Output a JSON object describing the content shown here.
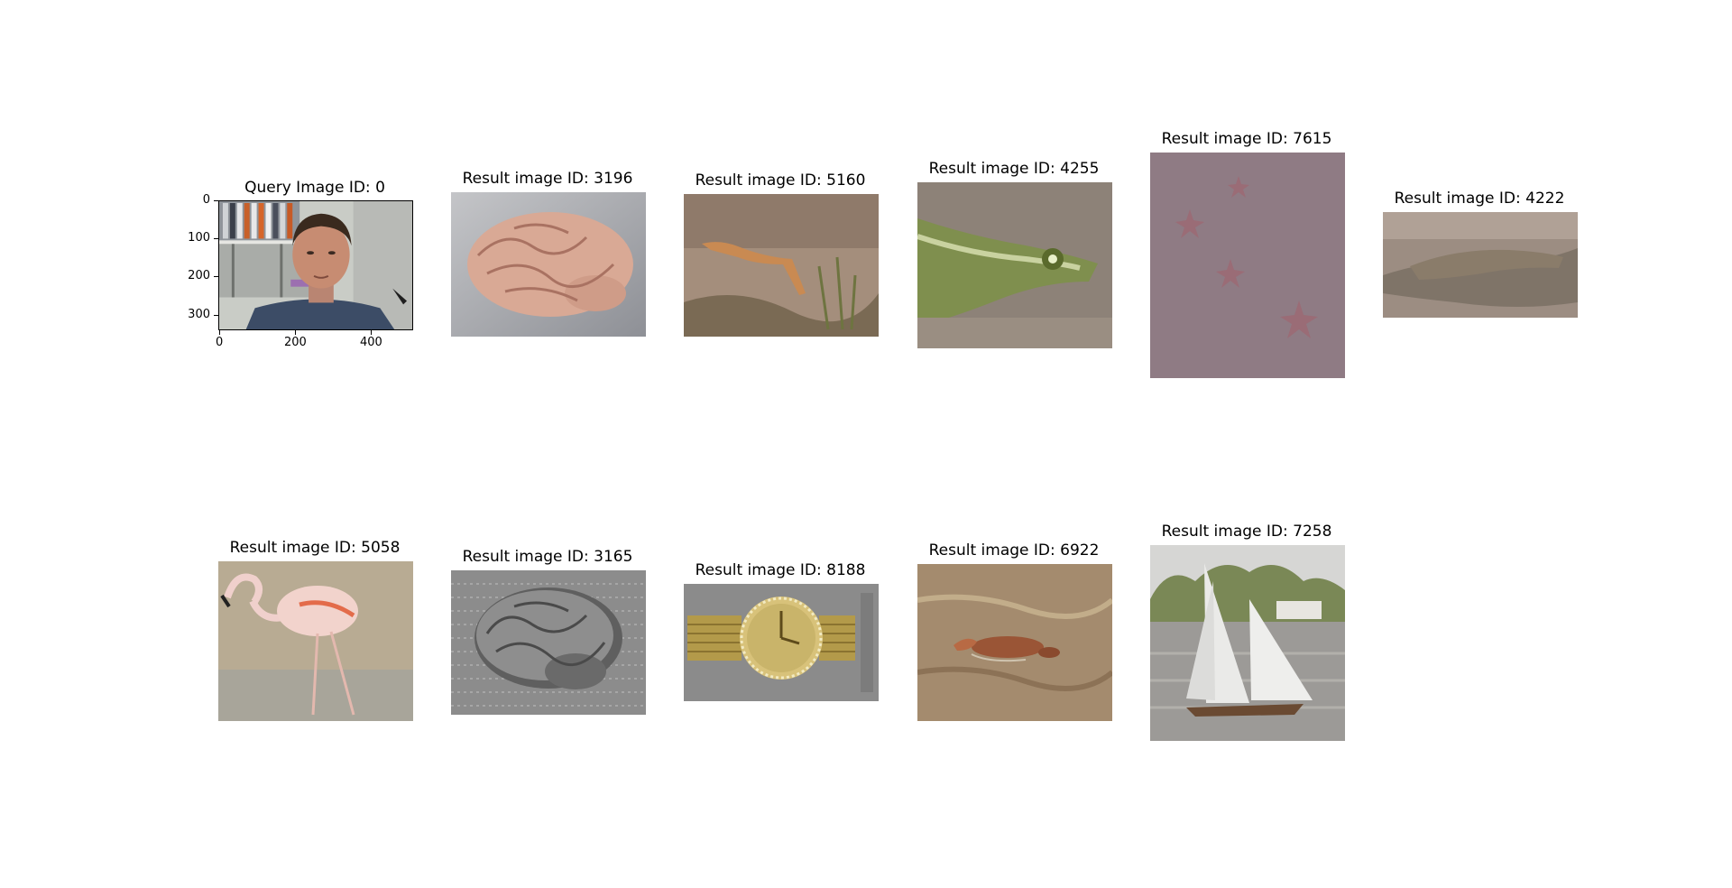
{
  "query": {
    "title": "Query Image ID: 0",
    "y_ticks": [
      "0",
      "100",
      "200",
      "300"
    ],
    "x_ticks": [
      "0",
      "200",
      "400"
    ]
  },
  "results": {
    "r3196": "Result image ID: 3196",
    "r5160": "Result image ID: 5160",
    "r4255": "Result image ID: 4255",
    "r7615": "Result image ID: 7615",
    "r4222": "Result image ID: 4222",
    "r5058": "Result image ID: 5058",
    "r3165": "Result image ID: 3165",
    "r8188": "Result image ID: 8188",
    "r6922": "Result image ID: 6922",
    "r7258": "Result image ID: 7258"
  }
}
